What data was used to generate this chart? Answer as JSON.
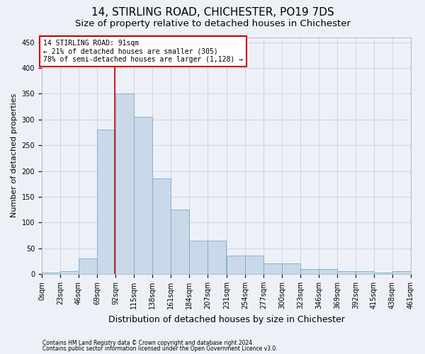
{
  "title1": "14, STIRLING ROAD, CHICHESTER, PO19 7DS",
  "title2": "Size of property relative to detached houses in Chichester",
  "xlabel": "Distribution of detached houses by size in Chichester",
  "ylabel": "Number of detached properties",
  "footer1": "Contains HM Land Registry data © Crown copyright and database right 2024.",
  "footer2": "Contains public sector information licensed under the Open Government Licence v3.0.",
  "bin_edges": [
    0,
    23,
    46,
    69,
    92,
    115,
    138,
    161,
    184,
    207,
    231,
    254,
    277,
    300,
    323,
    346,
    369,
    392,
    415,
    438,
    461
  ],
  "bar_heights": [
    2,
    5,
    30,
    280,
    350,
    305,
    185,
    125,
    65,
    65,
    35,
    35,
    20,
    20,
    10,
    10,
    5,
    5,
    2,
    5,
    5
  ],
  "bar_color": "#c9d9ea",
  "bar_edge_color": "#7aaac8",
  "grid_color": "#ccd5e0",
  "property_line_x": 91,
  "property_line_color": "#cc0000",
  "annotation_text": "14 STIRLING ROAD: 91sqm\n← 21% of detached houses are smaller (305)\n78% of semi-detached houses are larger (1,128) →",
  "annotation_box_color": "#ffffff",
  "annotation_box_edge_color": "#cc0000",
  "ylim": [
    0,
    460
  ],
  "yticks": [
    0,
    50,
    100,
    150,
    200,
    250,
    300,
    350,
    400,
    450
  ],
  "bg_color": "#edf1f7",
  "plot_bg_color": "#edf1f7",
  "title1_fontsize": 11,
  "title2_fontsize": 9.5,
  "xlabel_fontsize": 9,
  "ylabel_fontsize": 8,
  "annotation_fontsize": 7,
  "tick_fontsize": 7,
  "footer_fontsize": 5.5
}
